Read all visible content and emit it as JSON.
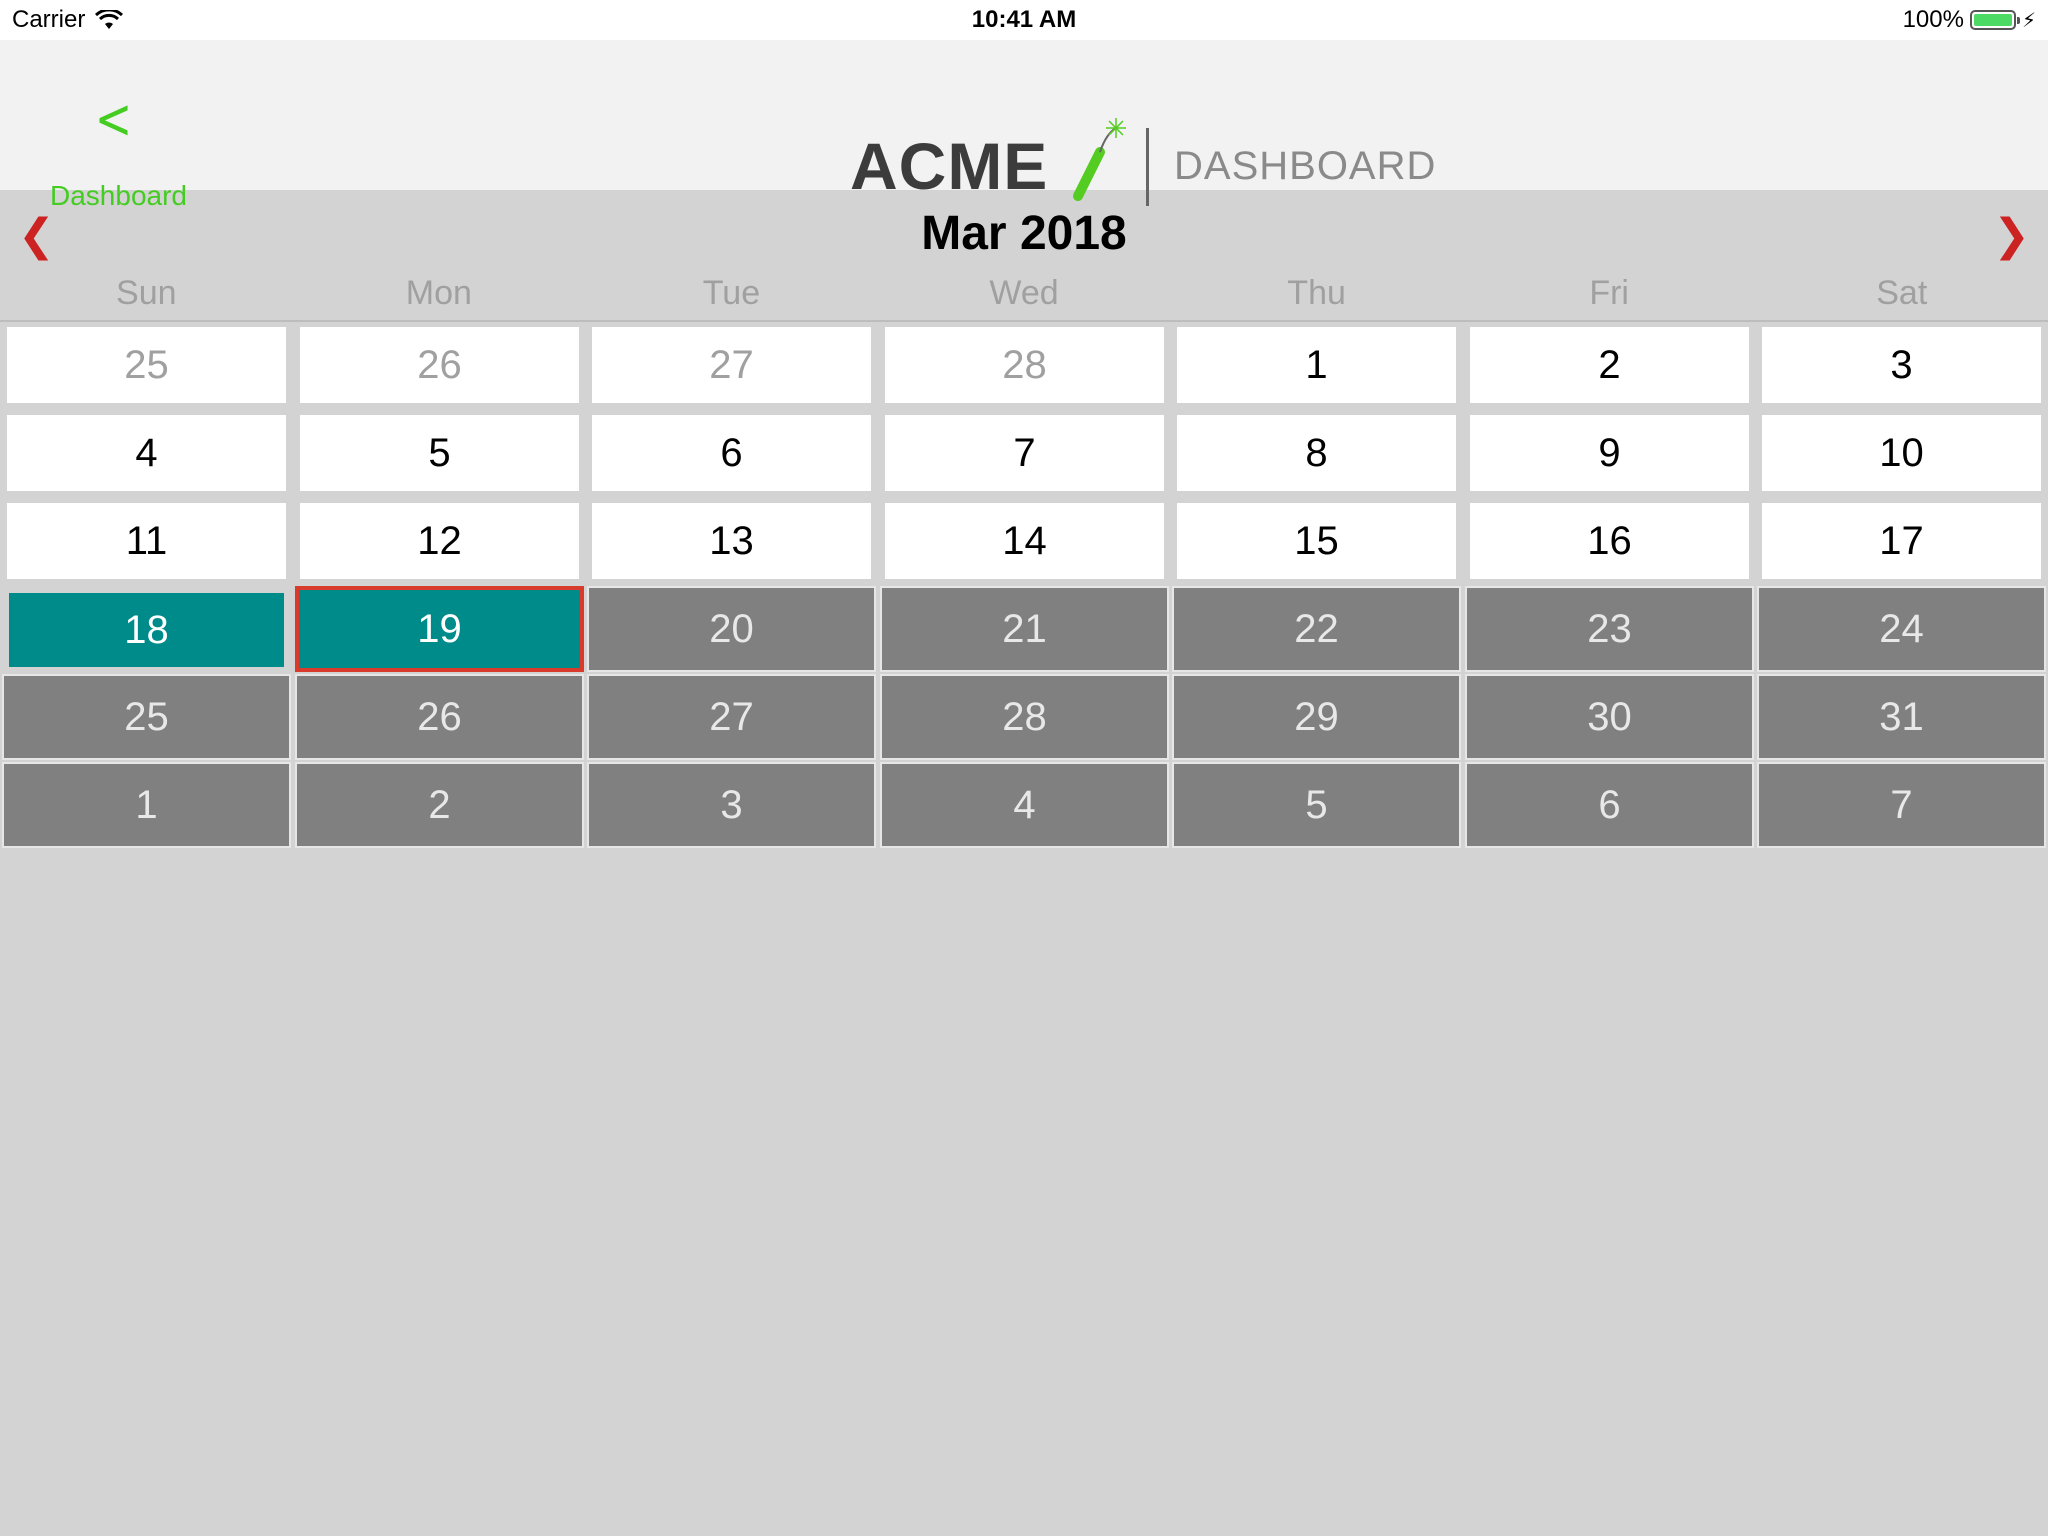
{
  "status_bar": {
    "carrier": "Carrier",
    "time": "10:41 AM",
    "battery": "100%"
  },
  "nav": {
    "back_label": "Dashboard",
    "logo_word": "ACME",
    "logo_sub": "DASHBOARD"
  },
  "calendar": {
    "month_title": "Mar 2018",
    "weekdays": [
      "Sun",
      "Mon",
      "Tue",
      "Wed",
      "Thu",
      "Fri",
      "Sat"
    ],
    "weeks": [
      [
        {
          "day": "25",
          "style": "white muted"
        },
        {
          "day": "26",
          "style": "white muted"
        },
        {
          "day": "27",
          "style": "white muted"
        },
        {
          "day": "28",
          "style": "white muted"
        },
        {
          "day": "1",
          "style": "white"
        },
        {
          "day": "2",
          "style": "white"
        },
        {
          "day": "3",
          "style": "white"
        }
      ],
      [
        {
          "day": "4",
          "style": "white"
        },
        {
          "day": "5",
          "style": "white"
        },
        {
          "day": "6",
          "style": "white"
        },
        {
          "day": "7",
          "style": "white"
        },
        {
          "day": "8",
          "style": "white"
        },
        {
          "day": "9",
          "style": "white"
        },
        {
          "day": "10",
          "style": "white"
        }
      ],
      [
        {
          "day": "11",
          "style": "white"
        },
        {
          "day": "12",
          "style": "white"
        },
        {
          "day": "13",
          "style": "white"
        },
        {
          "day": "14",
          "style": "white"
        },
        {
          "day": "15",
          "style": "white"
        },
        {
          "day": "16",
          "style": "white"
        },
        {
          "day": "17",
          "style": "white"
        }
      ],
      [
        {
          "day": "18",
          "style": "teal"
        },
        {
          "day": "19",
          "style": "teal today"
        },
        {
          "day": "20",
          "style": "gray"
        },
        {
          "day": "21",
          "style": "gray"
        },
        {
          "day": "22",
          "style": "gray"
        },
        {
          "day": "23",
          "style": "gray"
        },
        {
          "day": "24",
          "style": "gray"
        }
      ],
      [
        {
          "day": "25",
          "style": "gray"
        },
        {
          "day": "26",
          "style": "gray"
        },
        {
          "day": "27",
          "style": "gray"
        },
        {
          "day": "28",
          "style": "gray"
        },
        {
          "day": "29",
          "style": "gray"
        },
        {
          "day": "30",
          "style": "gray"
        },
        {
          "day": "31",
          "style": "gray"
        }
      ],
      [
        {
          "day": "1",
          "style": "gray"
        },
        {
          "day": "2",
          "style": "gray"
        },
        {
          "day": "3",
          "style": "gray"
        },
        {
          "day": "4",
          "style": "gray"
        },
        {
          "day": "5",
          "style": "gray"
        },
        {
          "day": "6",
          "style": "gray"
        },
        {
          "day": "7",
          "style": "gray"
        }
      ]
    ]
  },
  "colors": {
    "accent_green": "#44cc22",
    "nav_arrow_red": "#cc2222",
    "selected_teal": "#008b8b",
    "today_border": "#d83a2c",
    "future_gray": "#808080"
  },
  "icons": {
    "wifi": "wifi-icon",
    "battery": "battery-icon",
    "charging": "charging-bolt-icon",
    "back": "chevron-left-icon",
    "prev": "chevron-left-icon",
    "next": "chevron-right-icon"
  }
}
